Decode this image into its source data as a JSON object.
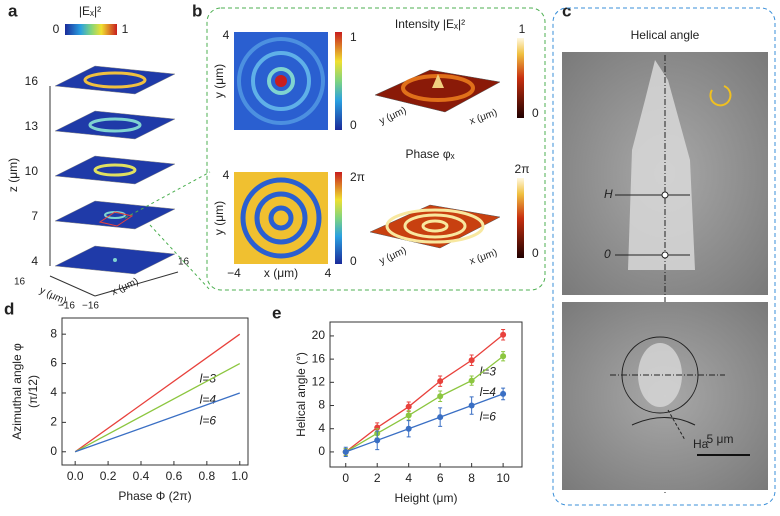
{
  "chart_data": [
    {
      "type": "line",
      "panel_label": "d",
      "xlabel": "Phase Φ (2π)",
      "ylabel": [
        "Azimuthal angle φ",
        "(π/12)"
      ],
      "x": [
        0,
        1
      ],
      "series": [
        {
          "name": "l=3",
          "color": "#e8413c",
          "values": [
            0,
            8
          ]
        },
        {
          "name": "l=4",
          "color": "#8cc63f",
          "values": [
            0,
            6
          ]
        },
        {
          "name": "l=6",
          "color": "#3a6fc4",
          "values": [
            0,
            4
          ]
        }
      ],
      "xlim": [
        -0.08,
        1.05
      ],
      "xticks": [
        {
          "value": 0,
          "label": "0.0"
        },
        {
          "value": 0.2,
          "label": "0.2"
        },
        {
          "value": 0.4,
          "label": "0.4"
        },
        {
          "value": 0.6,
          "label": "0.6"
        },
        {
          "value": 0.8,
          "label": "0.8"
        },
        {
          "value": 1,
          "label": "1.0"
        }
      ],
      "ylim": [
        -0.9,
        9.1
      ],
      "yticks": [
        0,
        2,
        4,
        6,
        8
      ]
    },
    {
      "type": "errorbar",
      "panel_label": "e",
      "xlabel": "Height (μm)",
      "ylabel": [
        "Helical angle (°)"
      ],
      "x": [
        0,
        2,
        4,
        6,
        8,
        10
      ],
      "series": [
        {
          "name": "l=3",
          "color": "#e8413c",
          "values": [
            0,
            4.2,
            7.8,
            12.2,
            15.8,
            20.2
          ],
          "errors": [
            0.6,
            0.8,
            0.8,
            0.9,
            0.9,
            0.9
          ]
        },
        {
          "name": "l=4",
          "color": "#8cc63f",
          "values": [
            0,
            3.2,
            6.3,
            9.6,
            12.3,
            16.5
          ],
          "errors": [
            0.6,
            0.8,
            0.8,
            0.9,
            0.8,
            0.8
          ]
        },
        {
          "name": "l=6",
          "color": "#3a6fc4",
          "values": [
            0,
            2,
            4,
            6,
            8,
            10
          ],
          "errors": [
            0.8,
            1.6,
            1.4,
            1.6,
            1.5,
            1
          ]
        }
      ],
      "xlim": [
        -1,
        11.2
      ],
      "xticks": [
        0,
        2,
        4,
        6,
        8,
        10
      ],
      "ylim": [
        -2.6,
        22.4
      ],
      "yticks": [
        0,
        4,
        8,
        12,
        16,
        20
      ]
    }
  ],
  "panels": {
    "a": {
      "label": "a",
      "colorbar_title": "|Eₓ|²",
      "colorbar_min": "0",
      "colorbar_max": "1",
      "zticks": [
        "16",
        "13",
        "10",
        "7",
        "4"
      ],
      "zlabel": "z (μm)",
      "ylabel": "y (μm)",
      "xlabel": "x (μm)",
      "y_max": "16",
      "y_min": "−16",
      "x_min": "−16",
      "x_max": "16"
    },
    "b": {
      "label": "b",
      "intensity_title": "Intensity |Eₓ|²",
      "phase_title": "Phase φₓ",
      "ylabel": "y (μm)",
      "xlabel": "x (μm)",
      "tick_pos": "4",
      "tick_neg": "−4",
      "int_cb_max": "1",
      "int_cb_min": "0",
      "phase_cb_max": "2π",
      "phase_cb_min": "0"
    },
    "c": {
      "label": "c",
      "title": "Helical angle",
      "h_label": "H",
      "zero_label": "0",
      "ha_label": "Ha",
      "scale": "5 μm"
    }
  }
}
